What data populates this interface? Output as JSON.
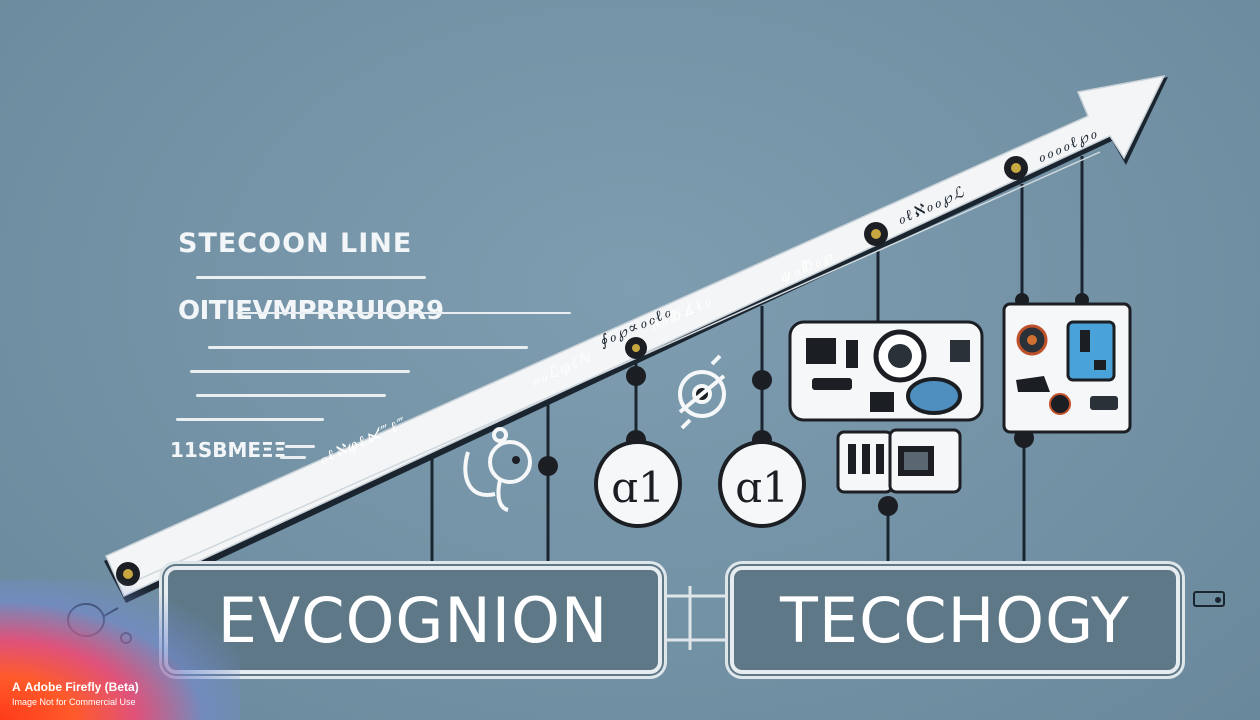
{
  "diagram": {
    "heading_primary": "STECOON LINE",
    "heading_secondary": "OITIEVMPRRUIOR9",
    "heading_tertiary": "11SBMEΞΞ",
    "banner_left": "EVCOGNION",
    "banner_right": "TECCHOGY",
    "arrow_labels": [
      "ℴℓℵφℓ⋉̸‴ℓ‴",
      "ℴℴℒφℓℕ",
      "∮ℴ℘∝ℴℴℓℴ",
      "∂ℴ℔∡ℓℴ",
      "ψℴ℔ℴ℘",
      "ℴℓℵℴℴ℘ℒ",
      "ℴℴℴℴℓ℘ℴ"
    ]
  },
  "watermark": {
    "title": "Adobe Firefly (Beta)",
    "subtitle": "Image Not for Commercial Use",
    "logo_glyph": "A"
  },
  "colors": {
    "background": "#7595a7",
    "arrow": "#f3f5f6",
    "banner_fill": "#5e7888",
    "ink": "#1b1f24",
    "accent_blue": "#4aa3d8",
    "node_gold": "#c8a640"
  }
}
